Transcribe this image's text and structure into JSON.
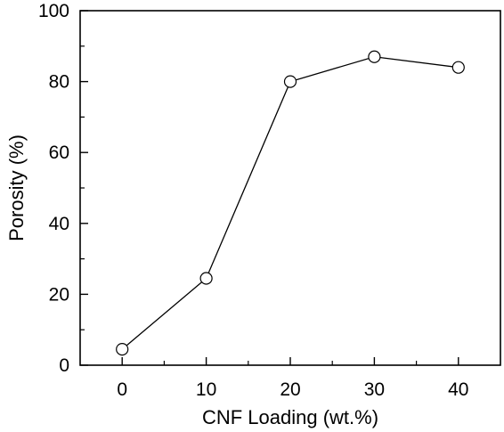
{
  "chart_data": {
    "type": "line",
    "title": "",
    "xlabel": "CNF Loading (wt.%)",
    "ylabel": "Porosity (%)",
    "xlim": [
      -5,
      45
    ],
    "ylim": [
      0,
      100
    ],
    "xticks": [
      0,
      10,
      20,
      30,
      40
    ],
    "yticks": [
      0,
      20,
      40,
      60,
      80,
      100
    ],
    "xtick_labels": [
      "0",
      "10",
      "20",
      "30",
      "40"
    ],
    "ytick_labels": [
      "0",
      "20",
      "40",
      "60",
      "80",
      "100"
    ],
    "grid": false,
    "marker": "open-circle",
    "line_color": "#000000",
    "series": [
      {
        "x": [
          0,
          10,
          20,
          30,
          40
        ],
        "y": [
          4.5,
          24.5,
          80,
          87,
          84
        ]
      }
    ]
  }
}
